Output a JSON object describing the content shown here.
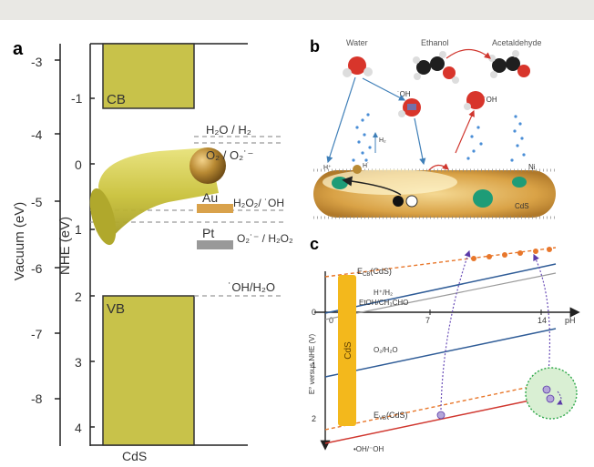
{
  "panel_a": {
    "label": "a",
    "vacuum_axis": {
      "label": "Vacuum (eV)",
      "ticks": [
        "-3",
        "-4",
        "-5",
        "-6",
        "-7",
        "-8"
      ]
    },
    "nhe_axis": {
      "label": "NHE (eV)",
      "ticks": [
        "-1",
        "0",
        "1",
        "2",
        "3",
        "4"
      ]
    },
    "cb_label": "CB",
    "vb_label": "VB",
    "material_label": "CdS",
    "au_label": "Au",
    "pt_label": "Pt",
    "levels": {
      "h2o_h2": "H₂O / H₂",
      "o2_o2m": "O₂ / O₂˙⁻",
      "h2o2_oh": "H₂O₂/ ˙OH",
      "o2m_h2o2": "O₂˙⁻ / H₂O₂",
      "oh_h2o": "˙OH/H₂O"
    }
  },
  "panel_b": {
    "label": "b",
    "water": "Water",
    "ethanol": "Ethanol",
    "acetaldehyde": "Acetaldehyde",
    "oh_radical_1": "˙OH",
    "oh_radical_2": "˙OH",
    "h2": "H₂",
    "h_plus": "H⁺",
    "h_dot": "H˙",
    "ni": "Ni",
    "cds": "CdS"
  },
  "panel_c": {
    "label": "c",
    "y_axis_label": "E° versus NHE (V)",
    "y_ticks": [
      "0",
      "1",
      "2"
    ],
    "x_axis_label": "pH",
    "x_ticks": [
      "0",
      "7",
      "14"
    ],
    "cds_label": "CdS",
    "ecb": "Eₒ₇(CdS)",
    "ecb_main": "E",
    "ecb_sub": "CB",
    "ecb_rest": "(CdS)",
    "h_h2": "H⁺/H₂",
    "etoh": "EtOH/CH₃CHO",
    "o2_h2o": "O₂/H₂O",
    "evb_main": "E",
    "evb_sub": "VB",
    "evb_rest": "(CdS)",
    "oh_oh": "•OH/⁻OH"
  },
  "colors": {
    "cds_band": "#c8c24a",
    "gold": "#b98a33",
    "nhe_blue": "#2f5c97",
    "ecb_orange": "#e8772b",
    "evb_red": "#d0372f",
    "h_gray": "#9a9a9a",
    "cds_bar": "#f3b81c"
  }
}
